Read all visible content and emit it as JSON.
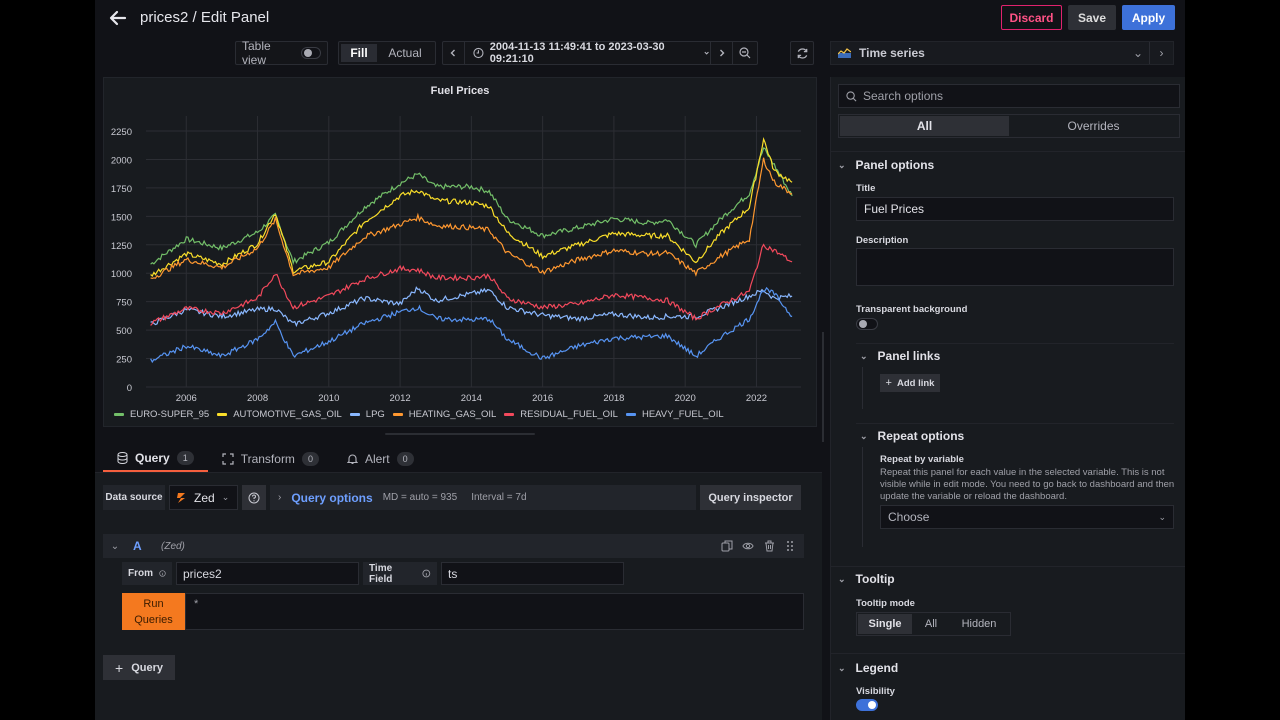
{
  "header": {
    "title": "prices2 / Edit Panel",
    "discard_label": "Discard",
    "save_label": "Save",
    "apply_label": "Apply"
  },
  "toolbar": {
    "table_view_label": "Table view",
    "table_view_on": false,
    "fill_label": "Fill",
    "actual_label": "Actual",
    "time_range": "2004-11-13 11:49:41 to 2023-03-30 09:21:10"
  },
  "viz_picker": {
    "selected": "Time series"
  },
  "panel": {
    "title": "Fuel Prices"
  },
  "chart_data": {
    "type": "line",
    "title": "Fuel Prices",
    "xlabel": "",
    "ylabel": "",
    "ylim": [
      0,
      2250
    ],
    "yticks": [
      0,
      250,
      500,
      750,
      1000,
      1250,
      1500,
      1750,
      2000,
      2250
    ],
    "xticks": [
      "2006",
      "2008",
      "2010",
      "2012",
      "2014",
      "2016",
      "2018",
      "2020",
      "2022"
    ],
    "x": [
      2005.0,
      2006.0,
      2007.0,
      2008.0,
      2008.5,
      2009.0,
      2010.0,
      2011.0,
      2012.0,
      2012.5,
      2013.0,
      2014.0,
      2014.5,
      2015.0,
      2016.0,
      2017.0,
      2018.0,
      2019.0,
      2019.5,
      2020.3,
      2021.0,
      2021.8,
      2022.2,
      2022.5,
      2023.0
    ],
    "series": [
      {
        "name": "EURO-SUPER_95",
        "color": "#73bf69",
        "values": [
          1080,
          1300,
          1220,
          1360,
          1510,
          1100,
          1270,
          1580,
          1790,
          1870,
          1760,
          1760,
          1720,
          1480,
          1330,
          1400,
          1480,
          1440,
          1470,
          1250,
          1480,
          1700,
          2100,
          1950,
          1680
        ]
      },
      {
        "name": "AUTOMOTIVE_GAS_OIL",
        "color": "#fade2a",
        "values": [
          980,
          1170,
          1080,
          1260,
          1530,
          1020,
          1100,
          1450,
          1680,
          1730,
          1640,
          1620,
          1590,
          1360,
          1150,
          1250,
          1350,
          1330,
          1330,
          1100,
          1350,
          1580,
          2180,
          1900,
          1800
        ]
      },
      {
        "name": "LPG",
        "color": "#8ab8ff",
        "values": [
          550,
          680,
          620,
          680,
          690,
          550,
          650,
          780,
          730,
          870,
          760,
          820,
          850,
          700,
          630,
          600,
          640,
          610,
          620,
          620,
          700,
          800,
          850,
          780,
          800
        ]
      },
      {
        "name": "HEATING_GAS_OIL",
        "color": "#ff9830",
        "values": [
          950,
          1120,
          1050,
          1220,
          1470,
          990,
          1050,
          1320,
          1430,
          1490,
          1420,
          1400,
          1380,
          1180,
          1010,
          1120,
          1200,
          1170,
          1180,
          1000,
          1150,
          1300,
          2000,
          1800,
          1700
        ]
      },
      {
        "name": "RESIDUAL_FUEL_OIL",
        "color": "#f2495c",
        "values": [
          560,
          690,
          650,
          780,
          1000,
          700,
          800,
          950,
          1040,
          1030,
          960,
          960,
          980,
          780,
          700,
          730,
          810,
          780,
          760,
          600,
          720,
          840,
          1250,
          1200,
          1100
        ]
      },
      {
        "name": "HEAVY_FUEL_OIL",
        "color": "#5794f2",
        "values": [
          230,
          360,
          270,
          420,
          570,
          270,
          400,
          560,
          660,
          700,
          600,
          590,
          600,
          420,
          250,
          360,
          430,
          440,
          450,
          270,
          440,
          600,
          860,
          820,
          620
        ]
      }
    ],
    "legend_position": "bottom",
    "grid": true
  },
  "query_tabs": [
    {
      "label": "Query",
      "count": "1"
    },
    {
      "label": "Transform",
      "count": "0"
    },
    {
      "label": "Alert",
      "count": "0"
    }
  ],
  "query": {
    "datasource_label": "Data source",
    "datasource": "Zed",
    "query_options_label": "Query options",
    "md": "MD = auto = 935",
    "interval": "Interval = 7d",
    "inspector_label": "Query inspector",
    "ref_id": "A",
    "ref_ds": "(Zed)",
    "from_label": "From",
    "from_value": "prices2",
    "time_field_label": "Time Field",
    "time_field_value": "ts",
    "run_label_1": "Run",
    "run_label_2": "Queries",
    "editor_value": "*",
    "add_query_label": "Query"
  },
  "options": {
    "search_placeholder": "Search options",
    "tab_all": "All",
    "tab_overrides": "Overrides",
    "panel_options": {
      "header": "Panel options",
      "title_label": "Title",
      "title_value": "Fuel Prices",
      "description_label": "Description",
      "description_value": "",
      "transparent_label": "Transparent background"
    },
    "panel_links": {
      "header": "Panel links",
      "add_link_label": "Add link"
    },
    "repeat_options": {
      "header": "Repeat options",
      "by_variable_label": "Repeat by variable",
      "by_variable_desc_1": "Repeat this panel for each value in the selected variable. This is not",
      "by_variable_desc_2": "visible while in edit mode. You need to go back to dashboard and then",
      "by_variable_desc_3": "update the variable or reload the dashboard.",
      "choose_placeholder": "Choose"
    },
    "tooltip": {
      "header": "Tooltip",
      "mode_label": "Tooltip mode",
      "modes": [
        "Single",
        "All",
        "Hidden"
      ],
      "selected": "Single"
    },
    "legend": {
      "header": "Legend",
      "visibility_label": "Visibility",
      "visibility_on": true
    }
  }
}
